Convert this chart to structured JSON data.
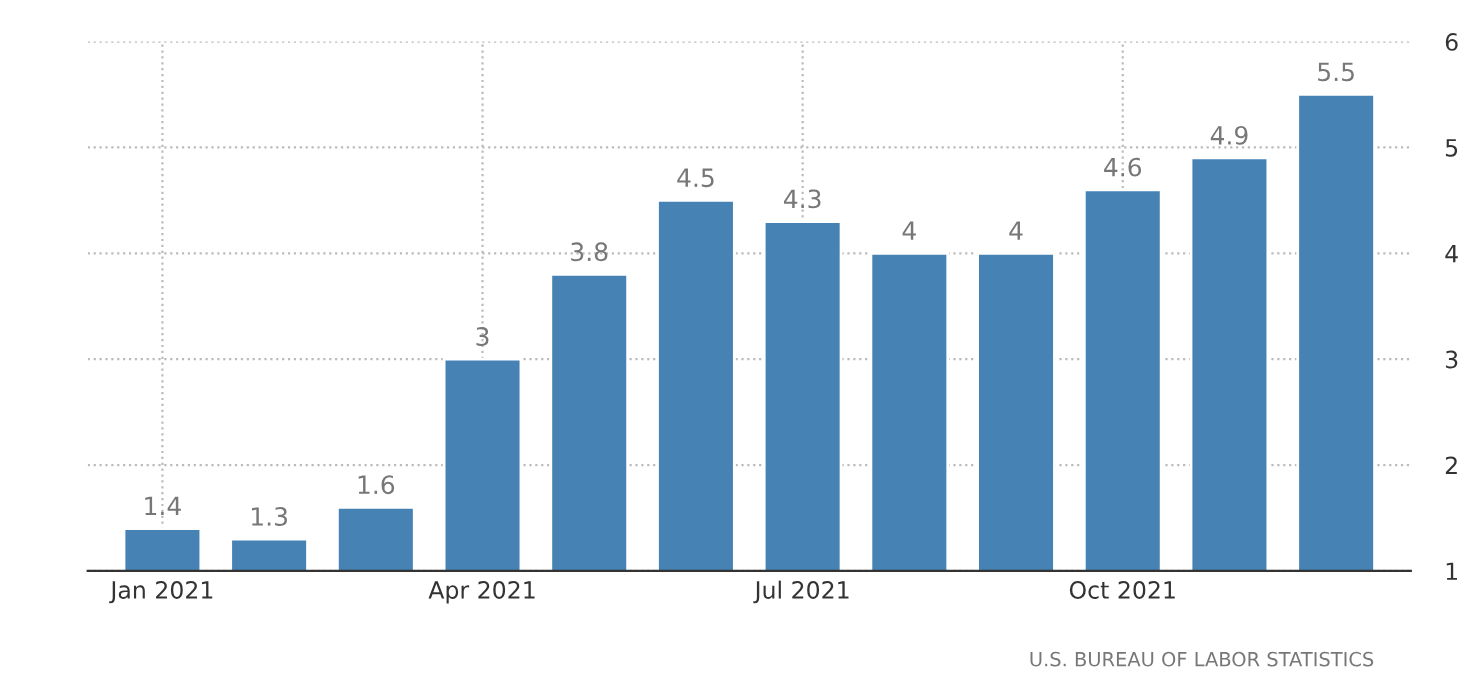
{
  "chart_data": {
    "type": "bar",
    "categories": [
      "Jan 2021",
      null,
      null,
      "Apr 2021",
      null,
      null,
      "Jul 2021",
      null,
      null,
      "Oct 2021",
      null,
      null
    ],
    "values": [
      1.4,
      1.3,
      1.6,
      3,
      3.8,
      4.5,
      4.3,
      4,
      4,
      4.6,
      4.9,
      5.5
    ],
    "color": "#4682b4",
    "ylim": [
      1,
      6
    ],
    "yticks": [
      1,
      2,
      3,
      4,
      5,
      6
    ],
    "grid": true,
    "data_labels": true,
    "annotations": [
      "U.S. BUREAU OF LABOR STATISTICS"
    ]
  }
}
